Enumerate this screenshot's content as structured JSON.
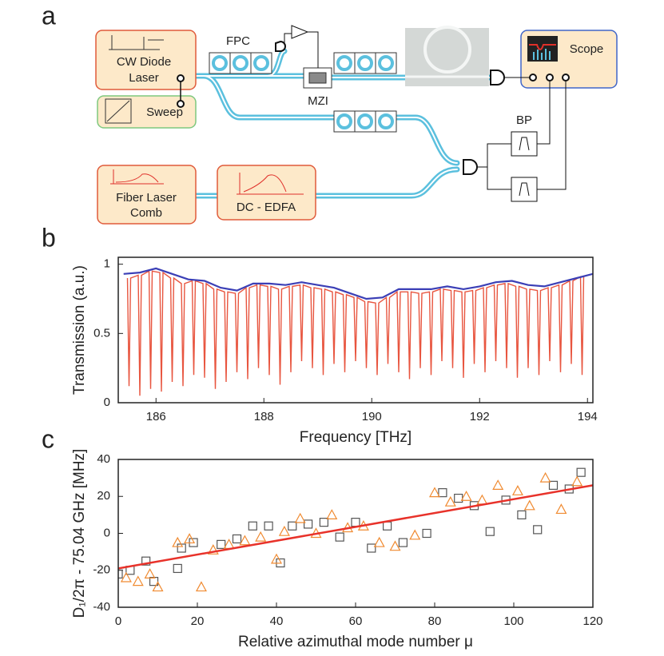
{
  "diagram": {
    "panel_label": "a",
    "cw_laser": [
      "CW Diode",
      "Laser"
    ],
    "sweep": "Sweep",
    "fpc": "FPC",
    "mzi": "MZI",
    "scope": "Scope",
    "bp": "BP",
    "comb": [
      "Fiber Laser",
      "Comb"
    ],
    "edfa": "DC - EDFA"
  },
  "chart_data": [
    {
      "type": "line",
      "panel_label": "b",
      "xlabel": "Frequency [THz]",
      "ylabel": "Transmission (a.u.)",
      "xlim": [
        185.3,
        194.1
      ],
      "xticks": [
        186,
        188,
        190,
        192,
        194
      ],
      "ylim": [
        0,
        1.05
      ],
      "yticks": [
        0,
        0.5,
        1
      ],
      "series": [
        {
          "color": "#e8553f",
          "x": [
            185.47,
            185.5,
            185.53,
            185.67,
            185.7,
            185.73,
            185.87,
            185.9,
            185.93,
            186.07,
            186.1,
            186.13,
            186.27,
            186.3,
            186.33,
            186.47,
            186.5,
            186.53,
            186.67,
            186.7,
            186.73,
            186.87,
            186.9,
            186.93,
            187.07,
            187.1,
            187.13,
            187.27,
            187.3,
            187.33,
            187.47,
            187.5,
            187.53,
            187.67,
            187.7,
            187.73,
            187.87,
            187.9,
            187.93,
            188.07,
            188.1,
            188.13,
            188.27,
            188.3,
            188.33,
            188.47,
            188.5,
            188.53,
            188.67,
            188.7,
            188.73,
            188.87,
            188.9,
            188.93,
            189.07,
            189.1,
            189.13,
            189.27,
            189.3,
            189.33,
            189.47,
            189.5,
            189.53,
            189.67,
            189.7,
            189.73,
            189.87,
            189.9,
            189.93,
            190.07,
            190.1,
            190.13,
            190.27,
            190.3,
            190.33,
            190.47,
            190.5,
            190.53,
            190.67,
            190.7,
            190.73,
            190.87,
            190.9,
            190.93,
            191.07,
            191.1,
            191.13,
            191.27,
            191.3,
            191.33,
            191.47,
            191.5,
            191.53,
            191.67,
            191.7,
            191.73,
            191.87,
            191.9,
            191.93,
            192.07,
            192.1,
            192.13,
            192.27,
            192.3,
            192.33,
            192.47,
            192.5,
            192.53,
            192.67,
            192.7,
            192.73,
            192.87,
            192.9,
            192.93,
            193.07,
            193.1,
            193.13,
            193.27,
            193.3,
            193.33,
            193.47,
            193.5,
            193.53,
            193.67,
            193.7,
            193.73,
            193.87,
            193.9,
            193.93
          ],
          "values": [
            0.9,
            0.12,
            0.9,
            0.92,
            0.05,
            0.92,
            0.95,
            0.1,
            0.95,
            0.94,
            0.08,
            0.94,
            0.9,
            0.15,
            0.9,
            0.86,
            0.12,
            0.86,
            0.88,
            0.2,
            0.88,
            0.86,
            0.18,
            0.86,
            0.82,
            0.1,
            0.82,
            0.8,
            0.15,
            0.8,
            0.79,
            0.22,
            0.79,
            0.83,
            0.17,
            0.83,
            0.85,
            0.25,
            0.85,
            0.84,
            0.2,
            0.84,
            0.82,
            0.13,
            0.82,
            0.84,
            0.22,
            0.84,
            0.85,
            0.3,
            0.85,
            0.83,
            0.25,
            0.83,
            0.82,
            0.2,
            0.82,
            0.8,
            0.28,
            0.8,
            0.78,
            0.22,
            0.78,
            0.76,
            0.3,
            0.76,
            0.73,
            0.25,
            0.73,
            0.72,
            0.2,
            0.72,
            0.76,
            0.28,
            0.76,
            0.8,
            0.22,
            0.8,
            0.8,
            0.17,
            0.8,
            0.79,
            0.25,
            0.79,
            0.8,
            0.2,
            0.8,
            0.82,
            0.3,
            0.82,
            0.81,
            0.25,
            0.81,
            0.8,
            0.18,
            0.8,
            0.81,
            0.28,
            0.81,
            0.83,
            0.22,
            0.83,
            0.85,
            0.3,
            0.85,
            0.86,
            0.25,
            0.86,
            0.84,
            0.18,
            0.84,
            0.82,
            0.25,
            0.82,
            0.81,
            0.2,
            0.81,
            0.83,
            0.3,
            0.83,
            0.85,
            0.22,
            0.85,
            0.88,
            0.28,
            0.88,
            0.91,
            0.2,
            0.91
          ]
        },
        {
          "color": "#3b3fb6",
          "x": [
            185.4,
            185.7,
            186.0,
            186.3,
            186.6,
            186.9,
            187.2,
            187.5,
            187.8,
            188.1,
            188.4,
            188.7,
            189.0,
            189.3,
            189.6,
            189.9,
            190.2,
            190.5,
            190.8,
            191.1,
            191.4,
            191.7,
            192.0,
            192.3,
            192.6,
            192.9,
            193.2,
            193.5,
            193.8,
            194.1
          ],
          "values": [
            0.93,
            0.94,
            0.97,
            0.93,
            0.89,
            0.88,
            0.83,
            0.81,
            0.86,
            0.86,
            0.85,
            0.87,
            0.85,
            0.83,
            0.79,
            0.75,
            0.76,
            0.82,
            0.82,
            0.82,
            0.84,
            0.82,
            0.84,
            0.87,
            0.88,
            0.85,
            0.84,
            0.87,
            0.9,
            0.93
          ]
        }
      ]
    },
    {
      "type": "scatter",
      "panel_label": "c",
      "xlabel": "Relative azimuthal mode number μ",
      "ylabel": "D₁/2π - 75.04 GHz [MHz]",
      "xlim": [
        0,
        120
      ],
      "xticks": [
        0,
        20,
        40,
        60,
        80,
        100,
        120
      ],
      "ylim": [
        -40,
        40
      ],
      "yticks": [
        -40,
        -20,
        0,
        20,
        40
      ],
      "series": [
        {
          "color": "#555555",
          "marker": "square",
          "x": [
            0,
            3,
            7,
            9,
            15,
            16,
            19,
            26,
            30,
            34,
            38,
            41,
            44,
            48,
            52,
            56,
            60,
            64,
            68,
            72,
            78,
            82,
            86,
            90,
            94,
            98,
            102,
            106,
            110,
            114,
            117
          ],
          "values": [
            -22,
            -20,
            -15,
            -26,
            -19,
            -8,
            -5,
            -6,
            -3,
            4,
            4,
            -16,
            4,
            5,
            6,
            -2,
            6,
            -8,
            4,
            -5,
            0,
            22,
            19,
            15,
            1,
            18,
            10,
            2,
            26,
            24,
            33
          ]
        },
        {
          "color": "#f08a30",
          "marker": "triangle",
          "x": [
            2,
            5,
            8,
            10,
            15,
            18,
            21,
            24,
            28,
            32,
            36,
            40,
            42,
            46,
            50,
            54,
            58,
            62,
            66,
            70,
            75,
            80,
            84,
            88,
            92,
            96,
            101,
            104,
            108,
            112,
            116
          ],
          "values": [
            -24,
            -26,
            -22,
            -29,
            -5,
            -3,
            -29,
            -9,
            -6,
            -4,
            -2,
            -14,
            1,
            8,
            0,
            10,
            3,
            4,
            -5,
            -7,
            -1,
            22,
            17,
            20,
            18,
            26,
            23,
            15,
            30,
            13,
            28
          ]
        },
        {
          "color": "#e8322a",
          "marker": "line",
          "x": [
            0,
            120
          ],
          "values": [
            -19,
            26
          ]
        }
      ]
    }
  ]
}
